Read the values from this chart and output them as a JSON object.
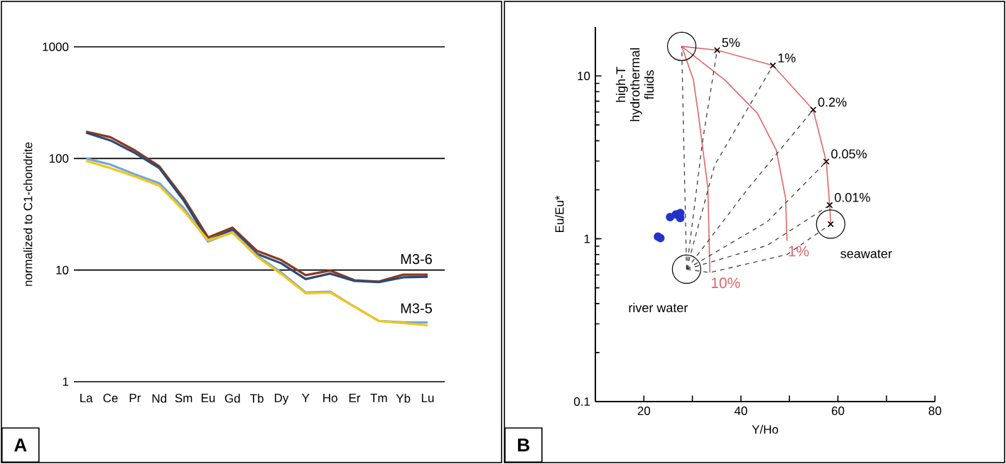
{
  "chart_data": [
    {
      "type": "line",
      "categories": [
        "La",
        "Ce",
        "Pr",
        "Nd",
        "Sm",
        "Eu",
        "Gd",
        "Tb",
        "Dy",
        "Y",
        "Ho",
        "Er",
        "Tm",
        "Yb",
        "Lu"
      ],
      "series": [
        {
          "color": "#8b3a1a",
          "values": [
            174,
            155,
            118,
            85,
            44,
            19.6,
            24,
            14.9,
            12.3,
            9.0,
            9.9,
            8.1,
            7.9,
            9.1,
            9.1
          ]
        },
        {
          "color": "#2a4a7a",
          "values": [
            170,
            145,
            112,
            82,
            42,
            18.5,
            23,
            14,
            11.5,
            8.3,
            9.3,
            8.0,
            7.8,
            8.6,
            8.7
          ]
        },
        {
          "color": "#6fa8dc",
          "values": [
            100,
            88,
            72,
            60,
            36,
            18,
            22,
            13.5,
            9.5,
            6.3,
            6.4,
            4.7,
            3.5,
            3.4,
            3.4
          ]
        },
        {
          "color": "#f5c518",
          "values": [
            95,
            82,
            69,
            57,
            34,
            18.5,
            21.6,
            13.2,
            9.2,
            6.2,
            6.3,
            4.7,
            3.5,
            3.35,
            3.2
          ]
        }
      ],
      "log": "y",
      "ylim": [
        1,
        1000
      ],
      "yticks": [
        1,
        10,
        100,
        1000
      ],
      "grid": "y",
      "ylabel": "normalized to C1-chondrite",
      "annotations": [
        {
          "text": "M3-6",
          "x": "Lu",
          "y": 9.1
        },
        {
          "text": "M3-5",
          "x": "Lu",
          "y": 3.2
        },
        "A"
      ]
    },
    {
      "type": "scatter",
      "series": [
        {
          "type": "line",
          "color": "#e06666",
          "line_style": "solid",
          "x": [
            27.8,
            35.1,
            46.6,
            54.9,
            57.6,
            58.3,
            58.5
          ],
          "values": [
            15.2,
            14.4,
            11.6,
            6.2,
            2.98,
            1.61,
            1.23
          ]
        },
        {
          "type": "line",
          "name": "1%",
          "color": "#e06666",
          "line_style": "solid",
          "x": [
            27.8,
            36.6,
            43.4,
            47.3,
            49.2,
            49.5
          ],
          "values": [
            15.2,
            9.5,
            5.9,
            3.5,
            1.78,
            0.97
          ]
        },
        {
          "type": "line",
          "name": "10%",
          "color": "#e06666",
          "line_style": "solid",
          "x": [
            27.8,
            30.2,
            31.2,
            33.2,
            33.6
          ],
          "values": [
            15.2,
            9.5,
            5.9,
            2.04,
            0.62
          ]
        },
        {
          "type": "line",
          "color": "#333333",
          "line_style": "dashed",
          "x": [
            28.8,
            27.8
          ],
          "values": [
            0.65,
            15.2
          ]
        },
        {
          "type": "line",
          "color": "#333333",
          "line_style": "dashed",
          "x": [
            28.8,
            32.1,
            35.1
          ],
          "values": [
            0.65,
            3.98,
            14.4
          ]
        },
        {
          "type": "line",
          "color": "#333333",
          "line_style": "dashed",
          "x": [
            28.8,
            34.6,
            46.6
          ],
          "values": [
            0.65,
            2.84,
            11.6
          ]
        },
        {
          "type": "line",
          "color": "#333333",
          "line_style": "dashed",
          "x": [
            28.8,
            41.5,
            54.9
          ],
          "values": [
            0.65,
            2.04,
            6.2
          ]
        },
        {
          "type": "line",
          "color": "#333333",
          "line_style": "dashed",
          "x": [
            28.8,
            45.4,
            57.6
          ],
          "values": [
            0.65,
            1.27,
            2.98
          ]
        },
        {
          "type": "line",
          "color": "#333333",
          "line_style": "dashed",
          "x": [
            28.8,
            45.4,
            58.3
          ],
          "values": [
            0.65,
            0.91,
            1.61
          ]
        },
        {
          "type": "line",
          "color": "#333333",
          "line_style": "dashed",
          "x": [
            28.8,
            33.6,
            49.5,
            58.5
          ],
          "values": [
            0.65,
            0.62,
            0.8,
            1.23
          ]
        },
        {
          "type": "scatter",
          "marker": "circle",
          "color": "#2233cc",
          "x": [
            25.4,
            26.6,
            27.5,
            27.5,
            22.9,
            23.4
          ],
          "values": [
            1.36,
            1.41,
            1.44,
            1.34,
            1.03,
            1.01
          ]
        },
        {
          "type": "scatter",
          "marker": "cross",
          "color": "#000000",
          "x": [
            35.1,
            46.6,
            54.9,
            57.6,
            58.3,
            58.5
          ],
          "values": [
            14.4,
            11.6,
            6.2,
            2.98,
            1.61,
            1.23
          ]
        },
        {
          "type": "bubble",
          "color": "#000000",
          "x": [
            27.8,
            28.8,
            58.5
          ],
          "values": [
            15.2,
            0.65,
            1.23
          ],
          "sizes": [
            1,
            1,
            1
          ]
        }
      ],
      "log": "y",
      "xlim": [
        10,
        80
      ],
      "xticks": [
        20,
        {
          "value": 30,
          "label": null
        },
        40,
        {
          "value": 50,
          "label": null
        },
        60,
        {
          "value": 70,
          "label": null
        },
        80
      ],
      "ylim": [
        0.1,
        20
      ],
      "yticks": [
        0.1,
        1,
        10
      ],
      "xlabel": "Y/Ho",
      "ylabel": "Eu/Eu*",
      "annotations": [
        {
          "text": "high-T hydrothermal fluids",
          "x": 27.8,
          "y": 15.2
        },
        {
          "text": "river water",
          "x": 28.8,
          "y": 0.65
        },
        {
          "text": "seawater",
          "x": 58.5,
          "y": 1.23
        },
        {
          "text": "5%",
          "x": 35.1,
          "y": 14.4
        },
        {
          "text": "1%",
          "x": 46.6,
          "y": 11.6
        },
        {
          "text": "0.2%",
          "x": 54.9,
          "y": 6.2
        },
        {
          "text": "0.05%",
          "x": 57.6,
          "y": 2.98
        },
        {
          "text": "0.01%",
          "x": 58.3,
          "y": 1.61
        },
        "B"
      ]
    }
  ]
}
